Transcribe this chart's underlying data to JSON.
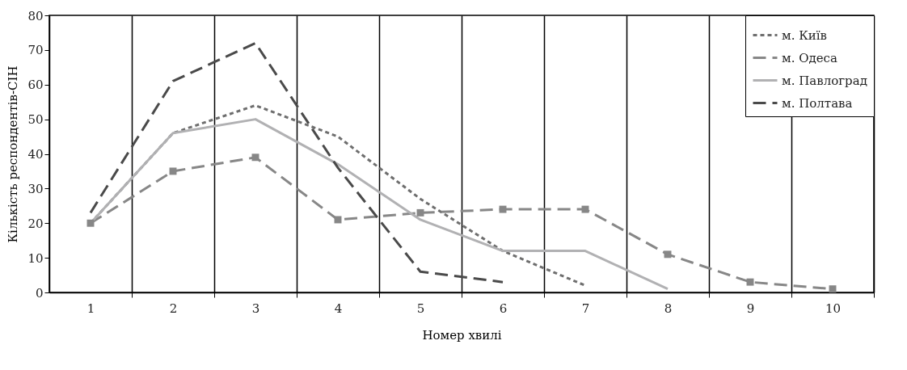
{
  "chart_data": {
    "type": "line",
    "xlabel": "Номер хвилі",
    "ylabel": "Кількість респондентів-СІН",
    "categories": [
      "1",
      "2",
      "3",
      "4",
      "5",
      "6",
      "7",
      "8",
      "9",
      "10"
    ],
    "ylim": [
      0,
      80
    ],
    "yticks": [
      0,
      10,
      20,
      30,
      40,
      50,
      60,
      70,
      80
    ],
    "grid": "x",
    "legend": "top right",
    "series": [
      {
        "name": "м. Київ",
        "color": "#6e6e6e",
        "line_style": "dotted",
        "values": [
          20,
          46,
          54,
          45,
          27,
          12,
          2,
          null,
          null,
          null
        ]
      },
      {
        "name": "м. Одеса",
        "color": "#878787",
        "line_style": "dashed",
        "marker": "square",
        "values": [
          20,
          35,
          39,
          21,
          23,
          24,
          24,
          11,
          3,
          1
        ]
      },
      {
        "name": "м. Павлоград",
        "color": "#b1b1b3",
        "line_style": "solid",
        "values": [
          20,
          46,
          50,
          37,
          21,
          12,
          12,
          1,
          null,
          null
        ]
      },
      {
        "name": "м. Полтава",
        "color": "#4a4a4a",
        "line_style": "dashed",
        "values": [
          23,
          61,
          72,
          36,
          6,
          3,
          null,
          null,
          null,
          null
        ]
      }
    ]
  }
}
